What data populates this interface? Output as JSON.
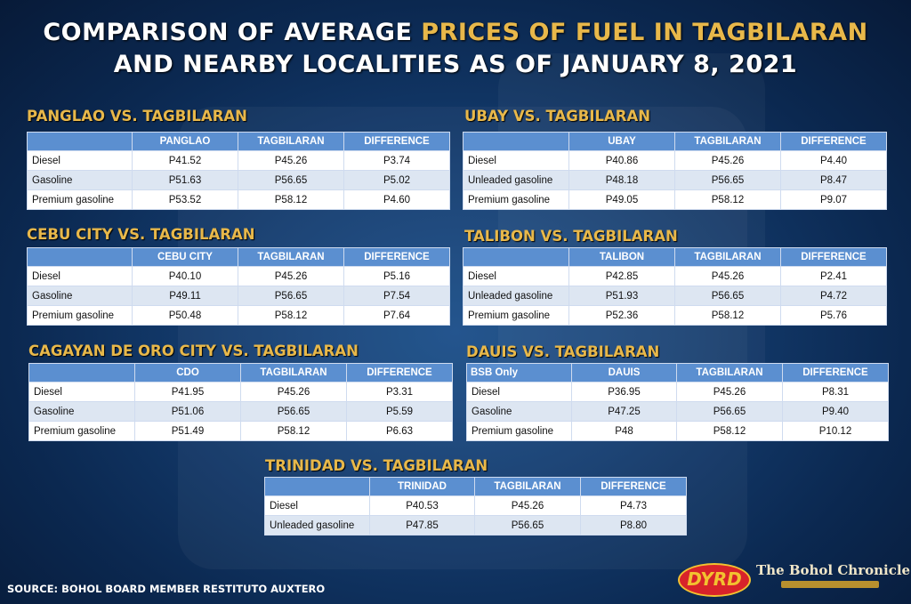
{
  "header": {
    "line1_part1": "COMPARISON OF AVERAGE ",
    "line1_part2": "PRICES OF FUEL IN TAGBILARAN",
    "line2": "AND NEARBY LOCALITIES AS OF JANUARY 8, 2021"
  },
  "tables": {
    "panglao": {
      "title": "PANGLAO VS. TAGBILARAN",
      "headers": [
        "",
        "PANGLAO",
        "TAGBILARAN",
        "DIFFERENCE"
      ],
      "rows": [
        [
          "Diesel",
          "P41.52",
          "P45.26",
          "P3.74"
        ],
        [
          "Gasoline",
          "P51.63",
          "P56.65",
          "P5.02"
        ],
        [
          "Premium gasoline",
          "P53.52",
          "P58.12",
          "P4.60"
        ]
      ]
    },
    "ubay": {
      "title": "UBAY VS. TAGBILARAN",
      "headers": [
        "",
        "UBAY",
        "TAGBILARAN",
        "DIFFERENCE"
      ],
      "rows": [
        [
          "Diesel",
          "P40.86",
          "P45.26",
          "P4.40"
        ],
        [
          "Unleaded gasoline",
          "P48.18",
          "P56.65",
          "P8.47"
        ],
        [
          "Premium gasoline",
          "P49.05",
          "P58.12",
          "P9.07"
        ]
      ]
    },
    "cebu": {
      "title": "CEBU CITY VS. TAGBILARAN",
      "headers": [
        "",
        "CEBU CITY",
        "TAGBILARAN",
        "DIFFERENCE"
      ],
      "rows": [
        [
          "Diesel",
          "P40.10",
          "P45.26",
          "P5.16"
        ],
        [
          "Gasoline",
          "P49.11",
          "P56.65",
          "P7.54"
        ],
        [
          "Premium gasoline",
          "P50.48",
          "P58.12",
          "P7.64"
        ]
      ]
    },
    "talibon": {
      "title": "TALIBON VS. TAGBILARAN",
      "headers": [
        "",
        "TALIBON",
        "TAGBILARAN",
        "DIFFERENCE"
      ],
      "rows": [
        [
          "Diesel",
          "P42.85",
          "P45.26",
          "P2.41"
        ],
        [
          "Unleaded gasoline",
          "P51.93",
          "P56.65",
          "P4.72"
        ],
        [
          "Premium gasoline",
          "P52.36",
          "P58.12",
          "P5.76"
        ]
      ]
    },
    "cdo": {
      "title": "CAGAYAN DE ORO CITY VS. TAGBILARAN",
      "headers": [
        "",
        "CDO",
        "TAGBILARAN",
        "DIFFERENCE"
      ],
      "rows": [
        [
          "Diesel",
          "P41.95",
          "P45.26",
          "P3.31"
        ],
        [
          "Gasoline",
          "P51.06",
          "P56.65",
          "P5.59"
        ],
        [
          "Premium gasoline",
          "P51.49",
          "P58.12",
          "P6.63"
        ]
      ]
    },
    "dauis": {
      "title": "DAUIS VS. TAGBILARAN",
      "headers": [
        "BSB Only",
        "DAUIS",
        "TAGBILARAN",
        "DIFFERENCE"
      ],
      "rows": [
        [
          "Diesel",
          "P36.95",
          "P45.26",
          "P8.31"
        ],
        [
          "Gasoline",
          "P47.25",
          "P56.65",
          "P9.40"
        ],
        [
          "Premium gasoline",
          "P48",
          "P58.12",
          "P10.12"
        ]
      ]
    },
    "trinidad": {
      "title": "TRINIDAD VS. TAGBILARAN",
      "headers": [
        "",
        "TRINIDAD",
        "TAGBILARAN",
        "DIFFERENCE"
      ],
      "rows": [
        [
          "Diesel",
          "P40.53",
          "P45.26",
          "P4.73"
        ],
        [
          "Unleaded gasoline",
          "P47.85",
          "P56.65",
          "P8.80"
        ]
      ]
    }
  },
  "footer": {
    "source": "SOURCE: BOHOL BOARD MEMBER RESTITUTO AUXTERO",
    "logo_dyrd": "DYRD",
    "logo_chronicle": "The Bohol Chronicle"
  },
  "colors": {
    "accent_gold": "#e8b84a",
    "table_header": "#5b8fd0",
    "row_alt": "#dde6f2"
  }
}
